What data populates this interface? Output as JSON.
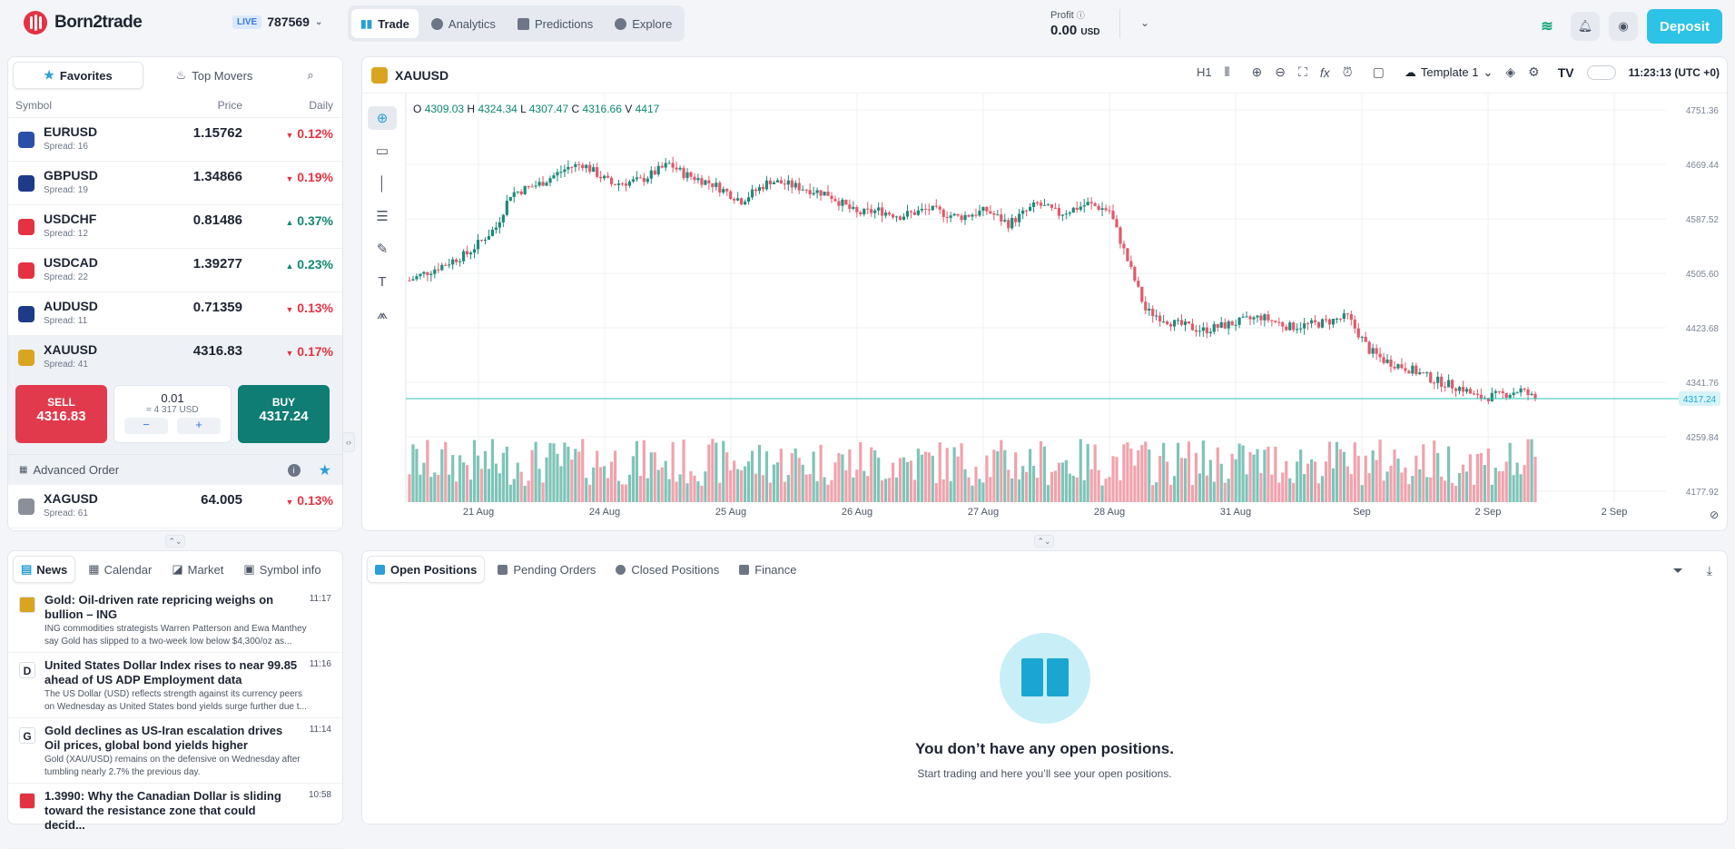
{
  "app": {
    "name": "Born2trade"
  },
  "account": {
    "mode": "LIVE",
    "number": "787569"
  },
  "nav": [
    {
      "label": "Trade",
      "icon": "bar-chart-icon",
      "active": true
    },
    {
      "label": "Analytics",
      "icon": "pie-icon",
      "active": false
    },
    {
      "label": "Predictions",
      "icon": "predictions-icon",
      "active": false
    },
    {
      "label": "Explore",
      "icon": "compass-icon",
      "active": false
    }
  ],
  "profit": {
    "label": "Profit",
    "value": "0.00",
    "currency": "USD"
  },
  "deposit_label": "Deposit",
  "watchlist": {
    "tabs": {
      "favorites": "Favorites",
      "top_movers": "Top Movers"
    },
    "headers": {
      "symbol": "Symbol",
      "price": "Price",
      "daily": "Daily"
    },
    "rows": [
      {
        "symbol": "EURUSD",
        "spread": "Spread: 16",
        "price": "1.15762",
        "change": "0.12%",
        "dir": "down",
        "flag_color": "#2a4fa8"
      },
      {
        "symbol": "GBPUSD",
        "spread": "Spread: 19",
        "price": "1.34866",
        "change": "0.19%",
        "dir": "down",
        "flag_color": "#1e3b8a"
      },
      {
        "symbol": "USDCHF",
        "spread": "Spread: 12",
        "price": "0.81486",
        "change": "0.37%",
        "dir": "up",
        "flag_color": "#e53242"
      },
      {
        "symbol": "USDCAD",
        "spread": "Spread: 22",
        "price": "1.39277",
        "change": "0.23%",
        "dir": "up",
        "flag_color": "#e53242"
      },
      {
        "symbol": "AUDUSD",
        "spread": "Spread: 11",
        "price": "0.71359",
        "change": "0.13%",
        "dir": "down",
        "flag_color": "#1e3b8a"
      },
      {
        "symbol": "XAUUSD",
        "spread": "Spread: 41",
        "price": "4316.83",
        "change": "0.17%",
        "dir": "down",
        "flag_color": "#d9a521"
      }
    ],
    "trade": {
      "sell_label": "SELL",
      "sell_price": "4316.83",
      "lot": "0.01",
      "lot_value": "≈ 4 317 USD",
      "minus": "−",
      "plus": "+",
      "buy_label": "BUY",
      "buy_price": "4317.24"
    },
    "advanced_order": "Advanced Order",
    "extra_row": {
      "symbol": "XAGUSD",
      "spread": "Spread: 61",
      "price": "64.005",
      "change": "0.13%",
      "dir": "down",
      "flag_color": "#8a8f99"
    }
  },
  "chart_header": {
    "symbol": "XAUUSD",
    "timeframe": "H1",
    "template": "Template 1",
    "clock": "11:23:13 (UTC +0)"
  },
  "ohlc": {
    "o_label": "O",
    "o": "4309.03",
    "h_label": "H",
    "h": "4324.34",
    "l_label": "L",
    "l": "4307.47",
    "c_label": "C",
    "c": "4316.66",
    "v_label": "V",
    "v": "4417"
  },
  "chart_data": {
    "type": "candlestick",
    "symbol": "XAUUSD",
    "timeframe": "H1",
    "ylim": [
      4177.9,
      4751.36
    ],
    "y_ticks": [
      "4751.36",
      "4669.44",
      "4587.52",
      "4505.60",
      "4423.68",
      "4341.76",
      "4259.84",
      "4177.92"
    ],
    "x_ticks": [
      "21 Aug",
      "24 Aug",
      "25 Aug",
      "26 Aug",
      "27 Aug",
      "28 Aug",
      "31 Aug",
      "Sep",
      "2 Sep",
      "2 Sep"
    ],
    "current_price": 4317.24,
    "close_path": [
      [
        0,
        4495
      ],
      [
        8,
        4515
      ],
      [
        16,
        4535
      ],
      [
        24,
        4575
      ],
      [
        28,
        4625
      ],
      [
        36,
        4640
      ],
      [
        44,
        4665
      ],
      [
        48,
        4670
      ],
      [
        56,
        4640
      ],
      [
        64,
        4645
      ],
      [
        72,
        4670
      ],
      [
        76,
        4655
      ],
      [
        84,
        4640
      ],
      [
        92,
        4615
      ],
      [
        100,
        4645
      ],
      [
        108,
        4635
      ],
      [
        116,
        4625
      ],
      [
        124,
        4595
      ],
      [
        130,
        4600
      ],
      [
        136,
        4592
      ],
      [
        144,
        4602
      ],
      [
        152,
        4590
      ],
      [
        160,
        4600
      ],
      [
        166,
        4580
      ],
      [
        174,
        4610
      ],
      [
        180,
        4595
      ],
      [
        188,
        4610
      ],
      [
        194,
        4600
      ],
      [
        200,
        4510
      ],
      [
        204,
        4450
      ],
      [
        212,
        4430
      ],
      [
        220,
        4420
      ],
      [
        228,
        4430
      ],
      [
        236,
        4440
      ],
      [
        244,
        4425
      ],
      [
        252,
        4430
      ],
      [
        260,
        4440
      ],
      [
        266,
        4390
      ],
      [
        270,
        4375
      ],
      [
        278,
        4360
      ],
      [
        284,
        4345
      ],
      [
        292,
        4332
      ],
      [
        296,
        4318
      ],
      [
        302,
        4322
      ],
      [
        308,
        4330
      ],
      [
        312,
        4316.66
      ]
    ]
  },
  "splitters": {
    "vertical": "‹›",
    "horizontal": "⌃⌄"
  },
  "news": {
    "tabs": [
      "News",
      "Calendar",
      "Market",
      "Symbol info"
    ],
    "items": [
      {
        "icon": "",
        "icon_bg": "#d9a521",
        "title": "Gold: Oil-driven rate repricing weighs on bullion – ING",
        "time": "11:17",
        "desc1": "ING commodities strategists Warren Patterson and Ewa Manthey",
        "desc2": "say Gold has slipped to a two-week low below $4,300/oz as..."
      },
      {
        "icon": "D",
        "icon_bg": "#ffffff",
        "title": "United States Dollar Index rises to near 99.85 ahead of US ADP Employment data",
        "time": "11:16",
        "desc1": "The US Dollar (USD) reflects strength against its currency peers",
        "desc2": "on Wednesday as United States bond yields surge further due t..."
      },
      {
        "icon": "G",
        "icon_bg": "#ffffff",
        "title": "Gold declines as US-Iran escalation drives Oil prices, global bond yields higher",
        "time": "11:14",
        "desc1": "Gold (XAU/USD) remains on the defensive on Wednesday after",
        "desc2": "tumbling nearly 2.7% the previous day."
      },
      {
        "icon": "",
        "icon_bg": "#e53242",
        "title": "1.3990: Why the Canadian Dollar is sliding toward the resistance zone that could decid...",
        "time": "10:58",
        "desc1": "",
        "desc2": ""
      }
    ]
  },
  "positions": {
    "tabs": [
      "Open Positions",
      "Pending Orders",
      "Closed Positions",
      "Finance"
    ],
    "empty_title": "You don’t have any open positions.",
    "empty_sub": "Start trading and here you’ll see your open positions."
  },
  "colors": {
    "up": "#0f8a70",
    "down": "#e53242",
    "accent": "#2cc3e6",
    "candle_up": "#1e8a7a",
    "candle_down": "#e3586a"
  }
}
